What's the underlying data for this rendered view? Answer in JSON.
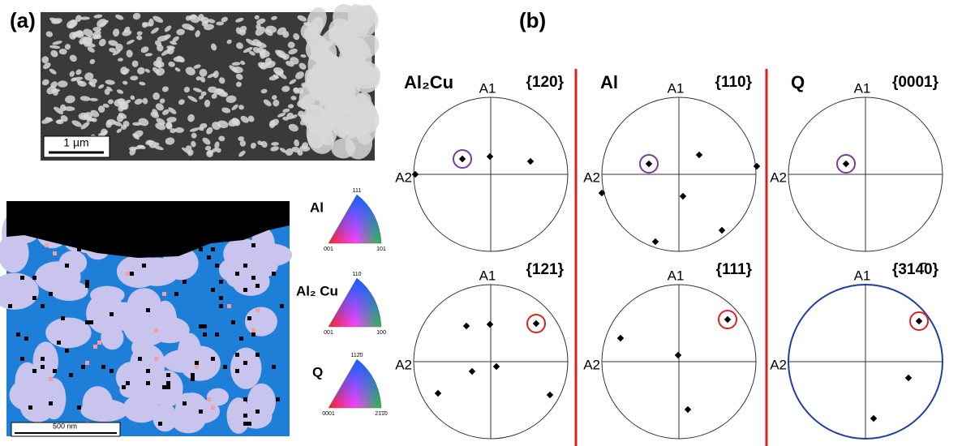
{
  "panel_a": {
    "label": "(a)",
    "sem_scale_bar": "1 µm",
    "ebsd_scale_bar": "500 nm",
    "legend": [
      {
        "phase": "Al",
        "top": "111",
        "left": "001",
        "right": "101"
      },
      {
        "phase": "Al₂ Cu",
        "top": "110",
        "left": "001",
        "right": "100"
      },
      {
        "phase": "Q",
        "top": "112̄0",
        "left": "0001",
        "right": "21̄1̄0"
      }
    ]
  },
  "panel_b": {
    "label": "(b)",
    "columns": [
      {
        "phase": "Al₂Cu",
        "figures": [
          {
            "plane": "{120}",
            "axis1": "A1",
            "axis2": "A2"
          },
          {
            "plane": "{121}",
            "axis1": "A1",
            "axis2": "A2"
          }
        ]
      },
      {
        "phase": "Al",
        "figures": [
          {
            "plane": "{110}",
            "axis1": "A1",
            "axis2": "A2"
          },
          {
            "plane": "{111}",
            "axis1": "A1",
            "axis2": "A2"
          }
        ]
      },
      {
        "phase": "Q",
        "figures": [
          {
            "plane": "{0001}",
            "axis1": "A1",
            "axis2": "A2"
          },
          {
            "plane": "{314̄0}",
            "axis1": "A1",
            "axis2": "A2"
          }
        ]
      }
    ]
  }
}
